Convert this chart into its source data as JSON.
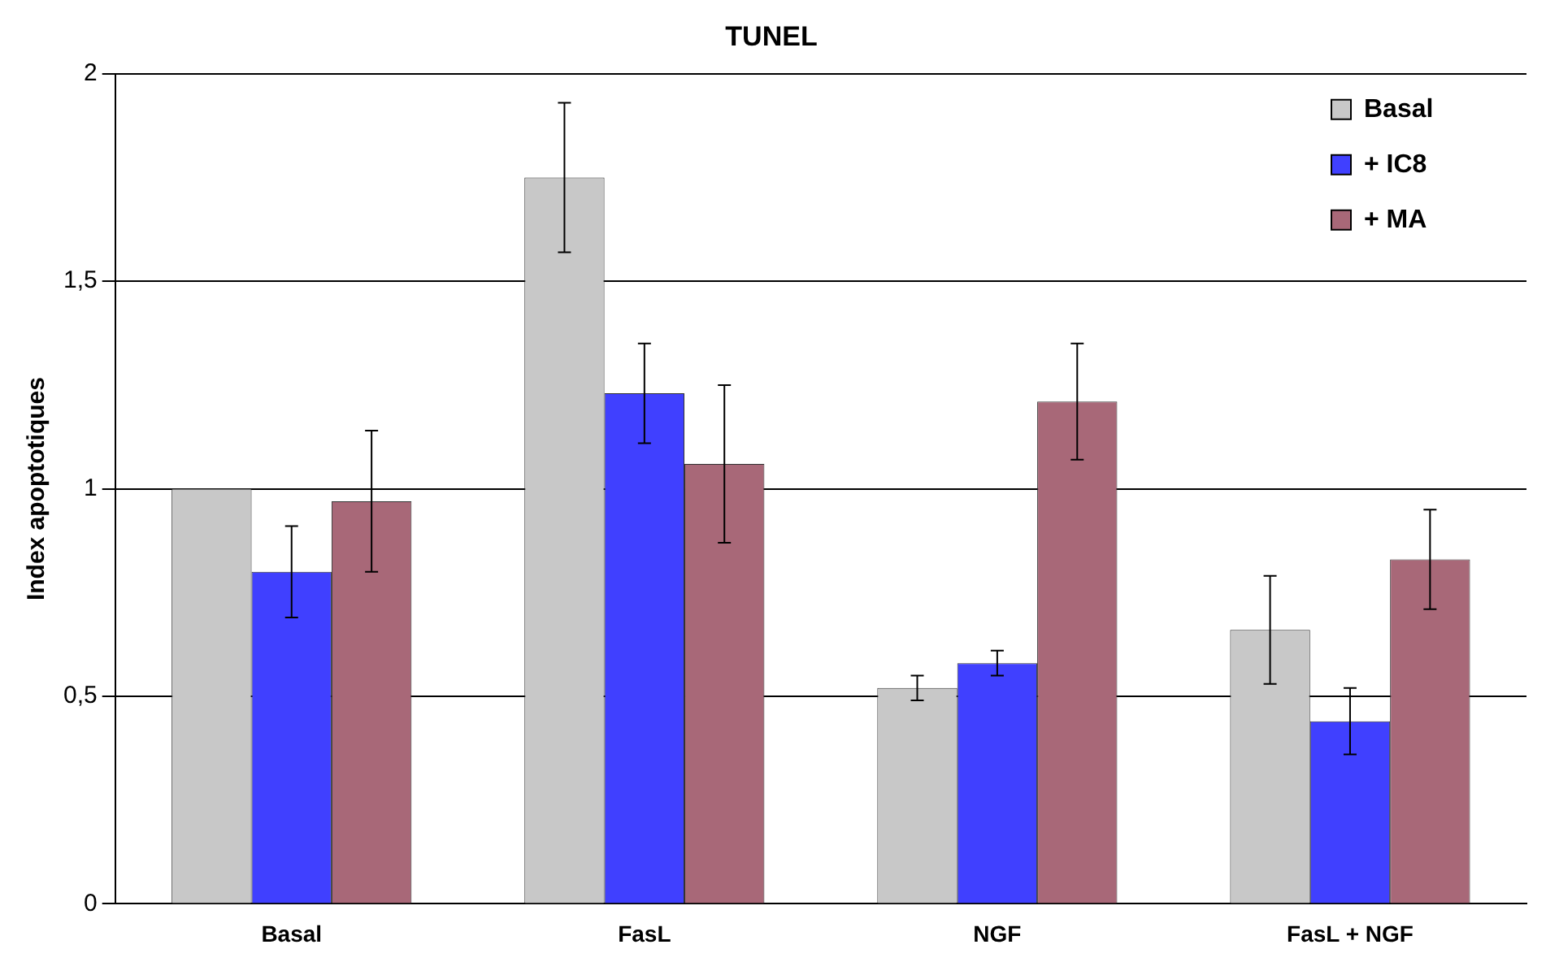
{
  "chart_data": {
    "type": "bar",
    "title": "TUNEL",
    "ylabel": "Index apoptotiques",
    "categories": [
      "Basal",
      "FasL",
      "NGF",
      "FasL + NGF"
    ],
    "series": [
      {
        "name": "Basal",
        "color": "#c8c8c8",
        "values": [
          1.0,
          1.75,
          0.52,
          0.66
        ],
        "errors": [
          null,
          0.18,
          0.03,
          0.13
        ]
      },
      {
        "name": "+ IC8",
        "color": "#4040ff",
        "values": [
          0.8,
          1.23,
          0.58,
          0.44
        ],
        "errors": [
          0.11,
          0.12,
          0.03,
          0.08
        ]
      },
      {
        "name": "+ MA",
        "color": "#a86878",
        "values": [
          0.97,
          1.06,
          1.21,
          0.83
        ],
        "errors": [
          0.17,
          0.19,
          0.14,
          0.12
        ]
      }
    ],
    "ylim": [
      0,
      2
    ],
    "yticks": [
      0,
      {
        "value": 0.5,
        "label": "0,5"
      },
      1,
      {
        "value": 1.5,
        "label": "1,5"
      },
      2
    ],
    "grid": "y",
    "legend": "top right"
  }
}
